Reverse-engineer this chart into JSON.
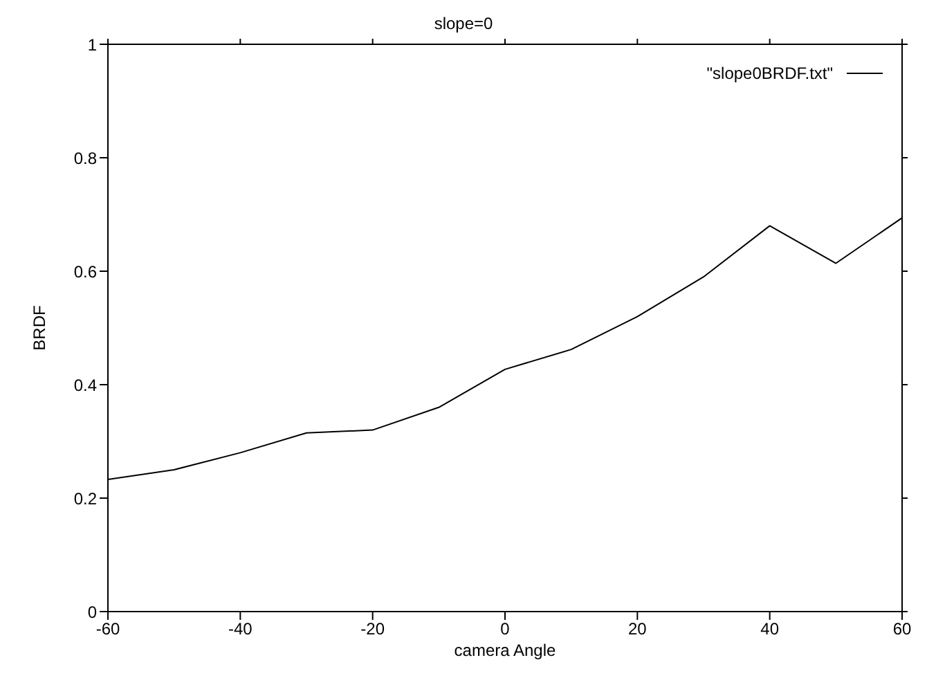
{
  "chart_data": {
    "type": "line",
    "title": "slope=0",
    "xlabel": "camera Angle",
    "ylabel": "BRDF",
    "x": [
      -60,
      -50,
      -40,
      -30,
      -20,
      -10,
      0,
      10,
      20,
      30,
      40,
      50,
      60
    ],
    "series": [
      {
        "name": "\"slope0BRDF.txt\"",
        "color": "#000000",
        "values": [
          0.233,
          0.25,
          0.28,
          0.315,
          0.32,
          0.36,
          0.427,
          0.462,
          0.52,
          0.59,
          0.68,
          0.614,
          0.694
        ]
      }
    ],
    "xlim": [
      -60,
      60
    ],
    "xticks": [
      -60,
      -40,
      -20,
      0,
      20,
      40,
      60
    ],
    "ylim": [
      0,
      1
    ],
    "yticks": [
      0,
      0.2,
      0.4,
      0.6,
      0.8,
      1
    ],
    "legend": "top right",
    "grid": false,
    "marker": "none",
    "line_style": "solid"
  }
}
